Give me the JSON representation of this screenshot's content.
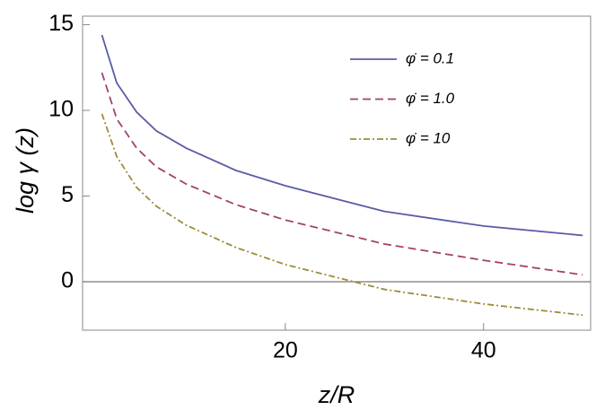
{
  "chart_data": {
    "type": "line",
    "xlabel": "z/R",
    "ylabel": "log γ (z)",
    "x": [
      1.5,
      3,
      5,
      7,
      10,
      15,
      20,
      30,
      40,
      50
    ],
    "series": [
      {
        "name": "φ̇ = 0.1",
        "color": "#5b5ba8",
        "style": "solid",
        "values": [
          14.4,
          11.6,
          9.9,
          8.8,
          7.8,
          6.5,
          5.6,
          4.1,
          3.25,
          2.7
        ]
      },
      {
        "name": "φ̇ = 1.0",
        "color": "#a4426c",
        "style": "dashed",
        "values": [
          12.2,
          9.5,
          7.8,
          6.7,
          5.7,
          4.5,
          3.6,
          2.2,
          1.25,
          0.4
        ]
      },
      {
        "name": "φ̇ = 10",
        "color": "#9a8d38",
        "style": "dashdot",
        "values": [
          9.8,
          7.3,
          5.5,
          4.4,
          3.3,
          2.0,
          1.0,
          -0.45,
          -1.3,
          -1.95
        ]
      }
    ],
    "xlim": [
      -0.45,
      50.8
    ],
    "ylim": [
      -2.83,
      15.5
    ],
    "xticks": [
      20,
      40
    ],
    "yticks": [
      0,
      5,
      10,
      15
    ],
    "legend": "top-right"
  }
}
